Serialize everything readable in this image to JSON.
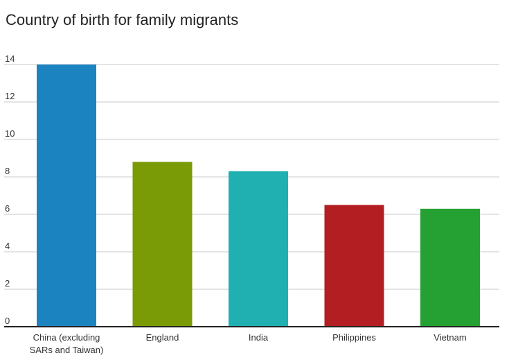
{
  "title": "Country of birth for family migrants",
  "chart_data": {
    "type": "bar",
    "title": "Country of birth for family migrants",
    "xlabel": "",
    "ylabel": "",
    "categories": [
      [
        "China (excluding",
        "SARs and Taiwan)"
      ],
      [
        "England"
      ],
      [
        "India"
      ],
      [
        "Philippines"
      ],
      [
        "Vietnam"
      ]
    ],
    "values": [
      14.0,
      8.8,
      8.3,
      6.5,
      6.3
    ],
    "colors": [
      "#1c83c1",
      "#7a9a06",
      "#21b0b2",
      "#b31e22",
      "#25a032"
    ],
    "ylim": [
      0,
      14
    ],
    "yticks": [
      0,
      2,
      4,
      6,
      8,
      10,
      12,
      14
    ],
    "grid": true
  }
}
